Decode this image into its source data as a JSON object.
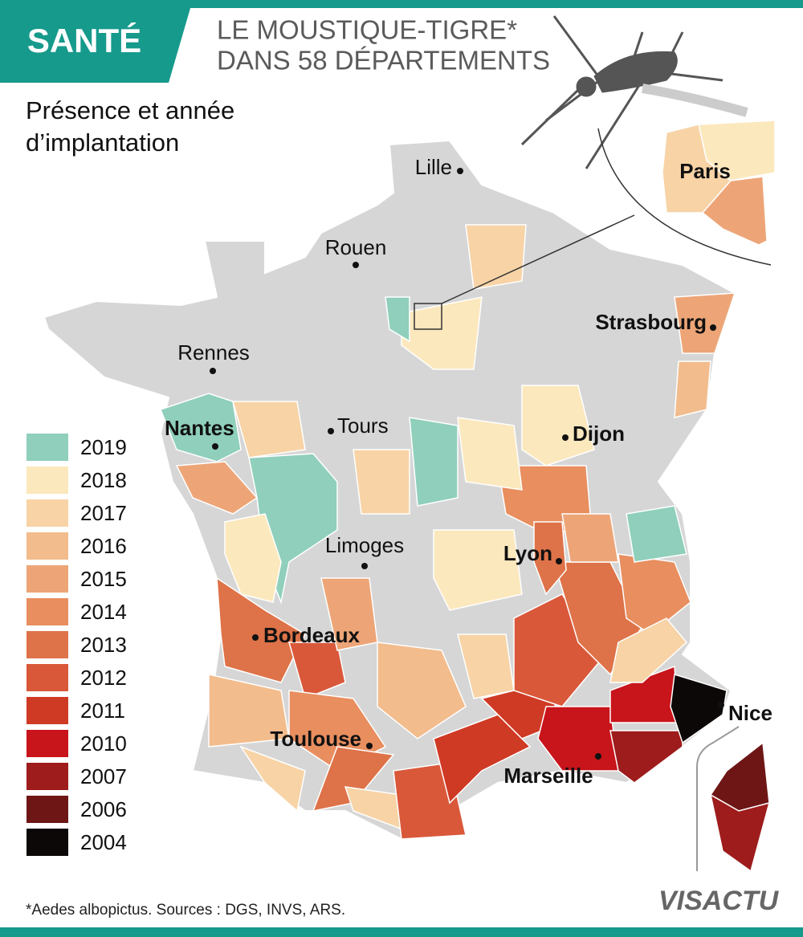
{
  "header": {
    "tag": "SANTÉ",
    "title_lines": [
      "LE MOUSTIQUE-TIGRE*",
      "DANS 58 DÉPARTEMENTS"
    ]
  },
  "subtitle_lines": [
    "Présence et année",
    "d’implantation"
  ],
  "legend": [
    {
      "label": "2019",
      "color": "#8fcfbb"
    },
    {
      "label": "2018",
      "color": "#fbe8bd"
    },
    {
      "label": "2017",
      "color": "#f7d3a6"
    },
    {
      "label": "2016",
      "color": "#f2bc8c"
    },
    {
      "label": "2015",
      "color": "#eda577"
    },
    {
      "label": "2014",
      "color": "#e88e5f"
    },
    {
      "label": "2013",
      "color": "#de7248"
    },
    {
      "label": "2012",
      "color": "#d9583a"
    },
    {
      "label": "2011",
      "color": "#cf3a24"
    },
    {
      "label": "2010",
      "color": "#c8141b"
    },
    {
      "label": "2007",
      "color": "#9e1c1c"
    },
    {
      "label": "2006",
      "color": "#6e1616"
    },
    {
      "label": "2004",
      "color": "#0c0807"
    }
  ],
  "cities": [
    "Lille",
    "Rouen",
    "Rennes",
    "Nantes",
    "Tours",
    "Dijon",
    "Strasbourg",
    "Limoges",
    "Lyon",
    "Bordeaux",
    "Toulouse",
    "Marseille",
    "Nice"
  ],
  "inset": {
    "label": "Paris"
  },
  "footnote": "*Aedes albopictus. Sources : DGS, INVS, ARS.",
  "logo": "VISACTU"
}
